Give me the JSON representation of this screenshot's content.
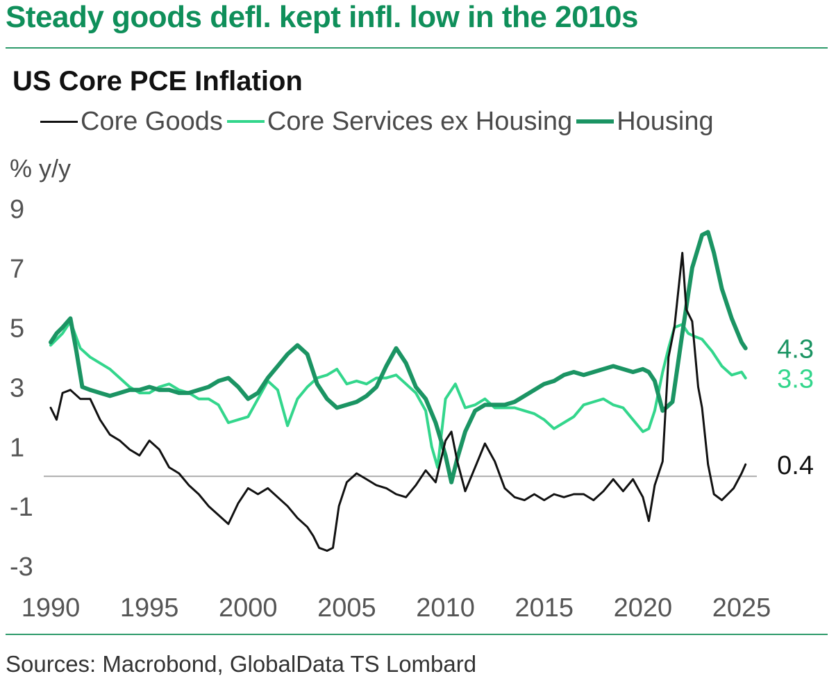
{
  "headline": "Steady goods defl. kept infl. low in the 2010s",
  "source": "Sources: Macrobond, GlobalData TS Lombard",
  "colors": {
    "headline": "#0f8f5a",
    "core_goods": "#111111",
    "core_services": "#33d68c",
    "housing": "#1b9463",
    "zero_line": "#aaaaaa"
  },
  "chart_data": {
    "type": "line",
    "title": "US Core PCE Inflation",
    "ylabel": "% y/y",
    "xlabel": "",
    "xlim": [
      1990,
      2025
    ],
    "ylim": [
      -3,
      9
    ],
    "yticks": [
      "9",
      "7",
      "5",
      "3",
      "1",
      "-1",
      "-3"
    ],
    "xticks": [
      "1990",
      "1995",
      "2000",
      "2005",
      "2010",
      "2015",
      "2020",
      "2025"
    ],
    "legend_position": "top",
    "grid": false,
    "end_labels": {
      "housing": "4.3",
      "core_services": "3.3",
      "core_goods": "0.4"
    },
    "series": [
      {
        "name": "Core Goods",
        "key": "core_goods",
        "x": [
          1990.0,
          1990.3,
          1990.6,
          1991.0,
          1991.5,
          1992.0,
          1992.5,
          1993.0,
          1993.5,
          1994.0,
          1994.5,
          1995.0,
          1995.5,
          1996.0,
          1996.5,
          1997.0,
          1997.5,
          1998.0,
          1998.5,
          1999.0,
          1999.5,
          2000.0,
          2000.5,
          2001.0,
          2001.5,
          2002.0,
          2002.5,
          2003.0,
          2003.3,
          2003.6,
          2004.0,
          2004.3,
          2004.6,
          2005.0,
          2005.5,
          2006.0,
          2006.5,
          2007.0,
          2007.5,
          2008.0,
          2008.5,
          2009.0,
          2009.5,
          2010.0,
          2010.3,
          2010.6,
          2011.0,
          2011.5,
          2012.0,
          2012.5,
          2013.0,
          2013.5,
          2014.0,
          2014.5,
          2015.0,
          2015.5,
          2016.0,
          2016.5,
          2017.0,
          2017.5,
          2018.0,
          2018.5,
          2019.0,
          2019.5,
          2020.0,
          2020.3,
          2020.6,
          2021.0,
          2021.3,
          2021.6,
          2022.0,
          2022.2,
          2022.5,
          2022.8,
          2023.0,
          2023.3,
          2023.6,
          2024.0,
          2024.3,
          2024.6,
          2025.0,
          2025.2
        ],
        "y": [
          2.3,
          1.9,
          2.8,
          2.9,
          2.6,
          2.6,
          1.9,
          1.4,
          1.2,
          0.9,
          0.7,
          1.2,
          0.9,
          0.3,
          0.1,
          -0.3,
          -0.6,
          -1.0,
          -1.3,
          -1.6,
          -0.9,
          -0.4,
          -0.6,
          -0.4,
          -0.7,
          -1.0,
          -1.4,
          -1.7,
          -2.0,
          -2.4,
          -2.5,
          -2.4,
          -1.0,
          -0.2,
          0.1,
          -0.1,
          -0.3,
          -0.4,
          -0.6,
          -0.7,
          -0.3,
          0.2,
          -0.2,
          1.2,
          1.5,
          0.5,
          -0.5,
          0.3,
          1.1,
          0.5,
          -0.4,
          -0.7,
          -0.8,
          -0.6,
          -0.8,
          -0.6,
          -0.7,
          -0.6,
          -0.6,
          -0.8,
          -0.5,
          -0.1,
          -0.5,
          -0.1,
          -0.7,
          -1.5,
          -0.3,
          0.5,
          4.0,
          5.0,
          7.5,
          5.6,
          5.2,
          3.0,
          2.3,
          0.4,
          -0.6,
          -0.8,
          -0.6,
          -0.4,
          0.1,
          0.4
        ]
      },
      {
        "name": "Core Services ex Housing",
        "key": "core_services",
        "x": [
          1990.0,
          1990.3,
          1990.6,
          1991.0,
          1991.5,
          1992.0,
          1992.5,
          1993.0,
          1993.5,
          1994.0,
          1994.5,
          1995.0,
          1995.5,
          1996.0,
          1996.5,
          1997.0,
          1997.5,
          1998.0,
          1998.5,
          1999.0,
          1999.5,
          2000.0,
          2000.5,
          2001.0,
          2001.5,
          2002.0,
          2002.5,
          2003.0,
          2003.5,
          2004.0,
          2004.5,
          2005.0,
          2005.5,
          2006.0,
          2006.5,
          2007.0,
          2007.5,
          2008.0,
          2008.5,
          2009.0,
          2009.3,
          2009.6,
          2010.0,
          2010.5,
          2011.0,
          2011.5,
          2012.0,
          2012.5,
          2013.0,
          2013.5,
          2014.0,
          2014.5,
          2015.0,
          2015.5,
          2016.0,
          2016.5,
          2017.0,
          2017.5,
          2018.0,
          2018.5,
          2019.0,
          2019.5,
          2020.0,
          2020.3,
          2020.6,
          2021.0,
          2021.3,
          2021.6,
          2022.0,
          2022.3,
          2022.6,
          2023.0,
          2023.5,
          2024.0,
          2024.5,
          2025.0,
          2025.2
        ],
        "y": [
          4.4,
          4.6,
          4.8,
          5.2,
          4.3,
          4.0,
          3.8,
          3.6,
          3.3,
          3.0,
          2.8,
          2.8,
          3.0,
          3.1,
          2.9,
          2.8,
          2.6,
          2.6,
          2.4,
          1.8,
          1.9,
          2.0,
          2.6,
          3.2,
          2.9,
          1.7,
          2.6,
          3.0,
          3.3,
          3.4,
          3.6,
          3.1,
          3.2,
          3.1,
          3.3,
          3.3,
          3.4,
          3.1,
          2.8,
          2.2,
          1.0,
          0.3,
          2.6,
          3.1,
          2.3,
          2.4,
          2.6,
          2.3,
          2.3,
          2.3,
          2.2,
          2.1,
          1.9,
          1.6,
          1.8,
          2.0,
          2.4,
          2.5,
          2.6,
          2.4,
          2.3,
          1.9,
          1.5,
          1.6,
          2.2,
          3.5,
          4.3,
          5.0,
          5.1,
          4.8,
          4.7,
          4.6,
          4.2,
          3.7,
          3.4,
          3.5,
          3.3
        ]
      },
      {
        "name": "Housing",
        "key": "housing",
        "x": [
          1990.0,
          1990.3,
          1990.6,
          1991.0,
          1991.3,
          1991.6,
          1992.0,
          1992.5,
          1993.0,
          1993.5,
          1994.0,
          1994.5,
          1995.0,
          1995.5,
          1996.0,
          1996.5,
          1997.0,
          1997.5,
          1998.0,
          1998.5,
          1999.0,
          1999.5,
          2000.0,
          2000.5,
          2001.0,
          2001.5,
          2002.0,
          2002.5,
          2003.0,
          2003.5,
          2004.0,
          2004.5,
          2005.0,
          2005.5,
          2006.0,
          2006.5,
          2007.0,
          2007.5,
          2008.0,
          2008.5,
          2009.0,
          2009.5,
          2010.0,
          2010.3,
          2010.6,
          2011.0,
          2011.5,
          2012.0,
          2012.5,
          2013.0,
          2013.5,
          2014.0,
          2014.5,
          2015.0,
          2015.5,
          2016.0,
          2016.5,
          2017.0,
          2017.5,
          2018.0,
          2018.5,
          2019.0,
          2019.5,
          2020.0,
          2020.3,
          2020.6,
          2021.0,
          2021.5,
          2022.0,
          2022.5,
          2023.0,
          2023.3,
          2023.6,
          2024.0,
          2024.5,
          2025.0,
          2025.2
        ],
        "y": [
          4.5,
          4.8,
          5.0,
          5.3,
          4.2,
          3.0,
          2.9,
          2.8,
          2.7,
          2.8,
          2.9,
          2.9,
          3.0,
          2.9,
          2.9,
          2.8,
          2.8,
          2.9,
          3.0,
          3.2,
          3.3,
          3.0,
          2.6,
          2.8,
          3.3,
          3.7,
          4.1,
          4.4,
          4.1,
          3.1,
          2.6,
          2.3,
          2.4,
          2.5,
          2.7,
          3.0,
          3.7,
          4.3,
          3.8,
          3.0,
          2.6,
          1.8,
          0.7,
          -0.2,
          0.6,
          1.5,
          2.2,
          2.4,
          2.4,
          2.4,
          2.5,
          2.7,
          2.9,
          3.1,
          3.2,
          3.4,
          3.5,
          3.4,
          3.5,
          3.6,
          3.7,
          3.6,
          3.5,
          3.6,
          3.5,
          3.2,
          2.2,
          2.5,
          4.8,
          7.0,
          8.1,
          8.2,
          7.5,
          6.3,
          5.3,
          4.5,
          4.3
        ]
      }
    ]
  }
}
